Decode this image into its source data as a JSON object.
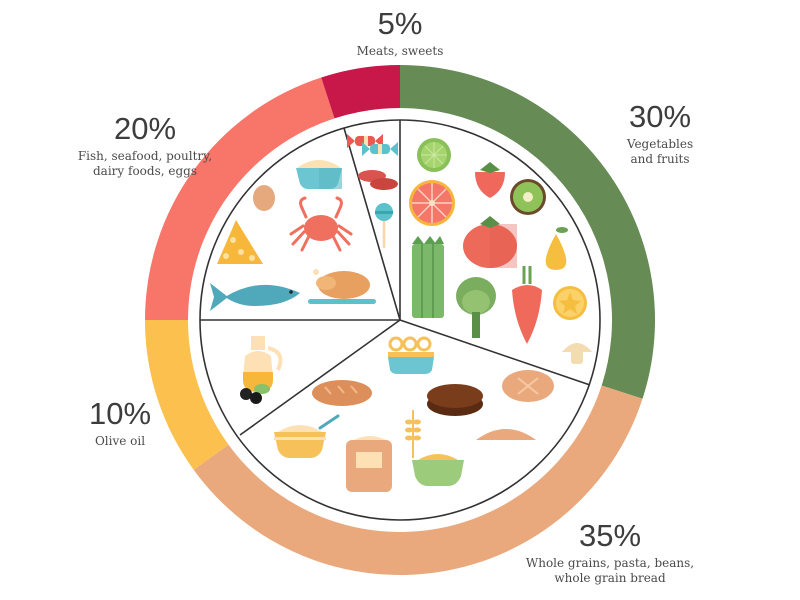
{
  "chart_data": {
    "type": "pie",
    "subtype": "donut",
    "title": "",
    "start_angle_deg": 0,
    "direction": "clockwise",
    "slices": [
      {
        "label": "Vegetables and fruits",
        "percent_label": "30%",
        "value": 30,
        "color": "#668b55",
        "desc_lines": [
          "Vegetables",
          "and fruits"
        ]
      },
      {
        "label": "Whole grains, pasta, beans, whole grain bread",
        "percent_label": "35%",
        "value": 35,
        "color": "#e9a97c",
        "desc_lines": [
          "Whole grains, pasta, beans,",
          "whole grain bread"
        ]
      },
      {
        "label": "Olive oil",
        "percent_label": "10%",
        "value": 10,
        "color": "#fbc04e",
        "desc_lines": [
          "Olive oil"
        ]
      },
      {
        "label": "Fish, seafood, poultry, dairy foods, eggs",
        "percent_label": "20%",
        "value": 20,
        "color": "#f8756a",
        "desc_lines": [
          "Fish, seafood, poultry,",
          "dairy foods, eggs"
        ]
      },
      {
        "label": "Meats, sweets",
        "percent_label": "5%",
        "value": 5,
        "color": "#c8184a",
        "desc_lines": [
          "Meats, sweets"
        ]
      }
    ],
    "legend_position": "labels around ring"
  },
  "labels": {
    "meats": {
      "pct": "5%",
      "line1": "Meats, sweets"
    },
    "fish": {
      "pct": "20%",
      "line1": "Fish, seafood, poultry,",
      "line2": "dairy foods, eggs"
    },
    "veg": {
      "pct": "30%",
      "line1": "Vegetables",
      "line2": "and fruits"
    },
    "oil": {
      "pct": "10%",
      "line1": "Olive oil"
    },
    "grains": {
      "pct": "35%",
      "line1": "Whole grains, pasta, beans,",
      "line2": "whole grain bread"
    }
  },
  "plate_icons": {
    "meats_sweets": [
      "candy-icon",
      "sausage-icon",
      "lollipop-icon"
    ],
    "fish_dairy": [
      "milk-bowl-icon",
      "egg-icon",
      "crab-icon",
      "cheese-icon",
      "fish-icon",
      "roast-chicken-icon"
    ],
    "vegetables_fruits": [
      "lime-icon",
      "strawberry-icon",
      "grapefruit-icon",
      "kiwi-icon",
      "tomato-icon",
      "asparagus-icon",
      "pear-icon",
      "artichoke-icon",
      "carrot-icon",
      "orange-slice-icon",
      "mushroom-icon"
    ],
    "olive_oil": [
      "olive-oil-jug-icon",
      "olives-icon"
    ],
    "grains": [
      "noodle-bowl-icon",
      "baguette-icon",
      "rye-bread-icon",
      "round-bread-icon",
      "porridge-bowl-icon",
      "flour-bag-icon",
      "wheat-icon",
      "grain-bowl-icon",
      "croissant-icon"
    ]
  }
}
